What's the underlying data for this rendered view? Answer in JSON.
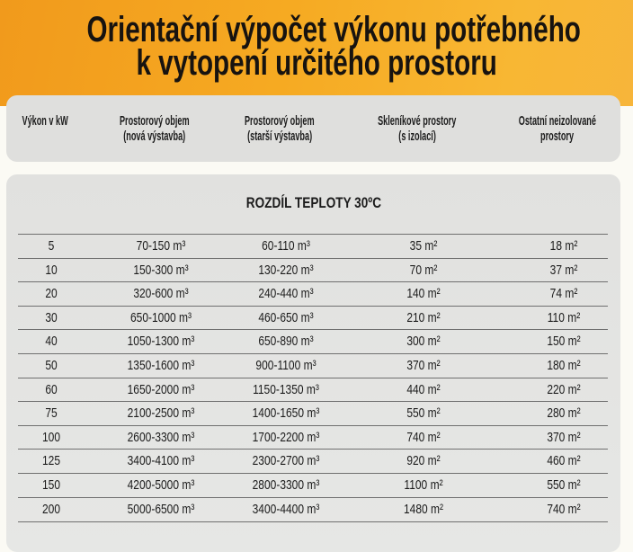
{
  "title": {
    "line1": "Orientační výpočet výkonu potřebného",
    "line2": "k vytopení určitého prostoru"
  },
  "header": {
    "columns": [
      [
        "Výkon v kW",
        ""
      ],
      [
        "Prostorový objem",
        "(nová výstavba)"
      ],
      [
        "Prostorový objem",
        "(starší výstavba)"
      ],
      [
        "Skleníkové prostory",
        "(s izolací)"
      ],
      [
        "Ostatní neizolované",
        "prostory"
      ]
    ]
  },
  "table": {
    "subtitle": "ROZDÍL TEPLOTY 30ºC",
    "rows": [
      [
        "5",
        "70-150 m³",
        "60-110 m³",
        "35 m²",
        "18 m²"
      ],
      [
        "10",
        "150-300 m³",
        "130-220 m³",
        "70 m²",
        "37 m²"
      ],
      [
        "20",
        "320-600 m³",
        "240-440 m³",
        "140 m²",
        "74 m²"
      ],
      [
        "30",
        "650-1000 m³",
        "460-650 m³",
        "210 m²",
        "110 m²"
      ],
      [
        "40",
        "1050-1300 m³",
        "650-890 m³",
        "300 m²",
        "150 m²"
      ],
      [
        "50",
        "1350-1600 m³",
        "900-1100 m³",
        "370 m²",
        "180 m²"
      ],
      [
        "60",
        "1650-2000 m³",
        "1150-1350 m³",
        "440 m²",
        "220 m²"
      ],
      [
        "75",
        "2100-2500 m³",
        "1400-1650 m³",
        "550 m²",
        "280 m²"
      ],
      [
        "100",
        "2600-3300 m³",
        "1700-2200 m³",
        "740 m²",
        "370 m²"
      ],
      [
        "125",
        "3400-4100 m³",
        "2300-2700 m³",
        "920 m²",
        "460 m²"
      ],
      [
        "150",
        "4200-5000 m³",
        "2800-3300 m³",
        "1100 m²",
        "550 m²"
      ],
      [
        "200",
        "5000-6500 m³",
        "3400-4400 m³",
        "1480 m²",
        "740 m²"
      ]
    ]
  },
  "colors": {
    "banner": "#f6aa22",
    "panel": "#dfdfdd"
  }
}
